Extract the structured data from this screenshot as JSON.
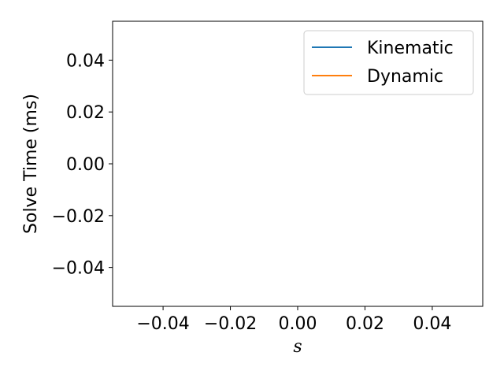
{
  "chart_data": {
    "type": "line",
    "xlabel": "s",
    "ylabel": "Solve Time (ms)",
    "xlim": [
      -0.055,
      0.055
    ],
    "ylim": [
      -0.055,
      0.055
    ],
    "xticks": [
      -0.04,
      -0.02,
      0.0,
      0.02,
      0.04
    ],
    "yticks": [
      -0.04,
      -0.02,
      0.0,
      0.02,
      0.04
    ],
    "xtick_labels": [
      "−0.04",
      "−0.02",
      "0.00",
      "0.02",
      "0.04"
    ],
    "ytick_labels": [
      "−0.04",
      "−0.02",
      "0.00",
      "0.02",
      "0.04"
    ],
    "grid": false,
    "legend_position": "top-right",
    "series": [
      {
        "name": "Kinematic",
        "color": "#1f77b4",
        "x": [],
        "y": []
      },
      {
        "name": "Dynamic",
        "color": "#ff7f0e",
        "x": [],
        "y": []
      }
    ]
  }
}
